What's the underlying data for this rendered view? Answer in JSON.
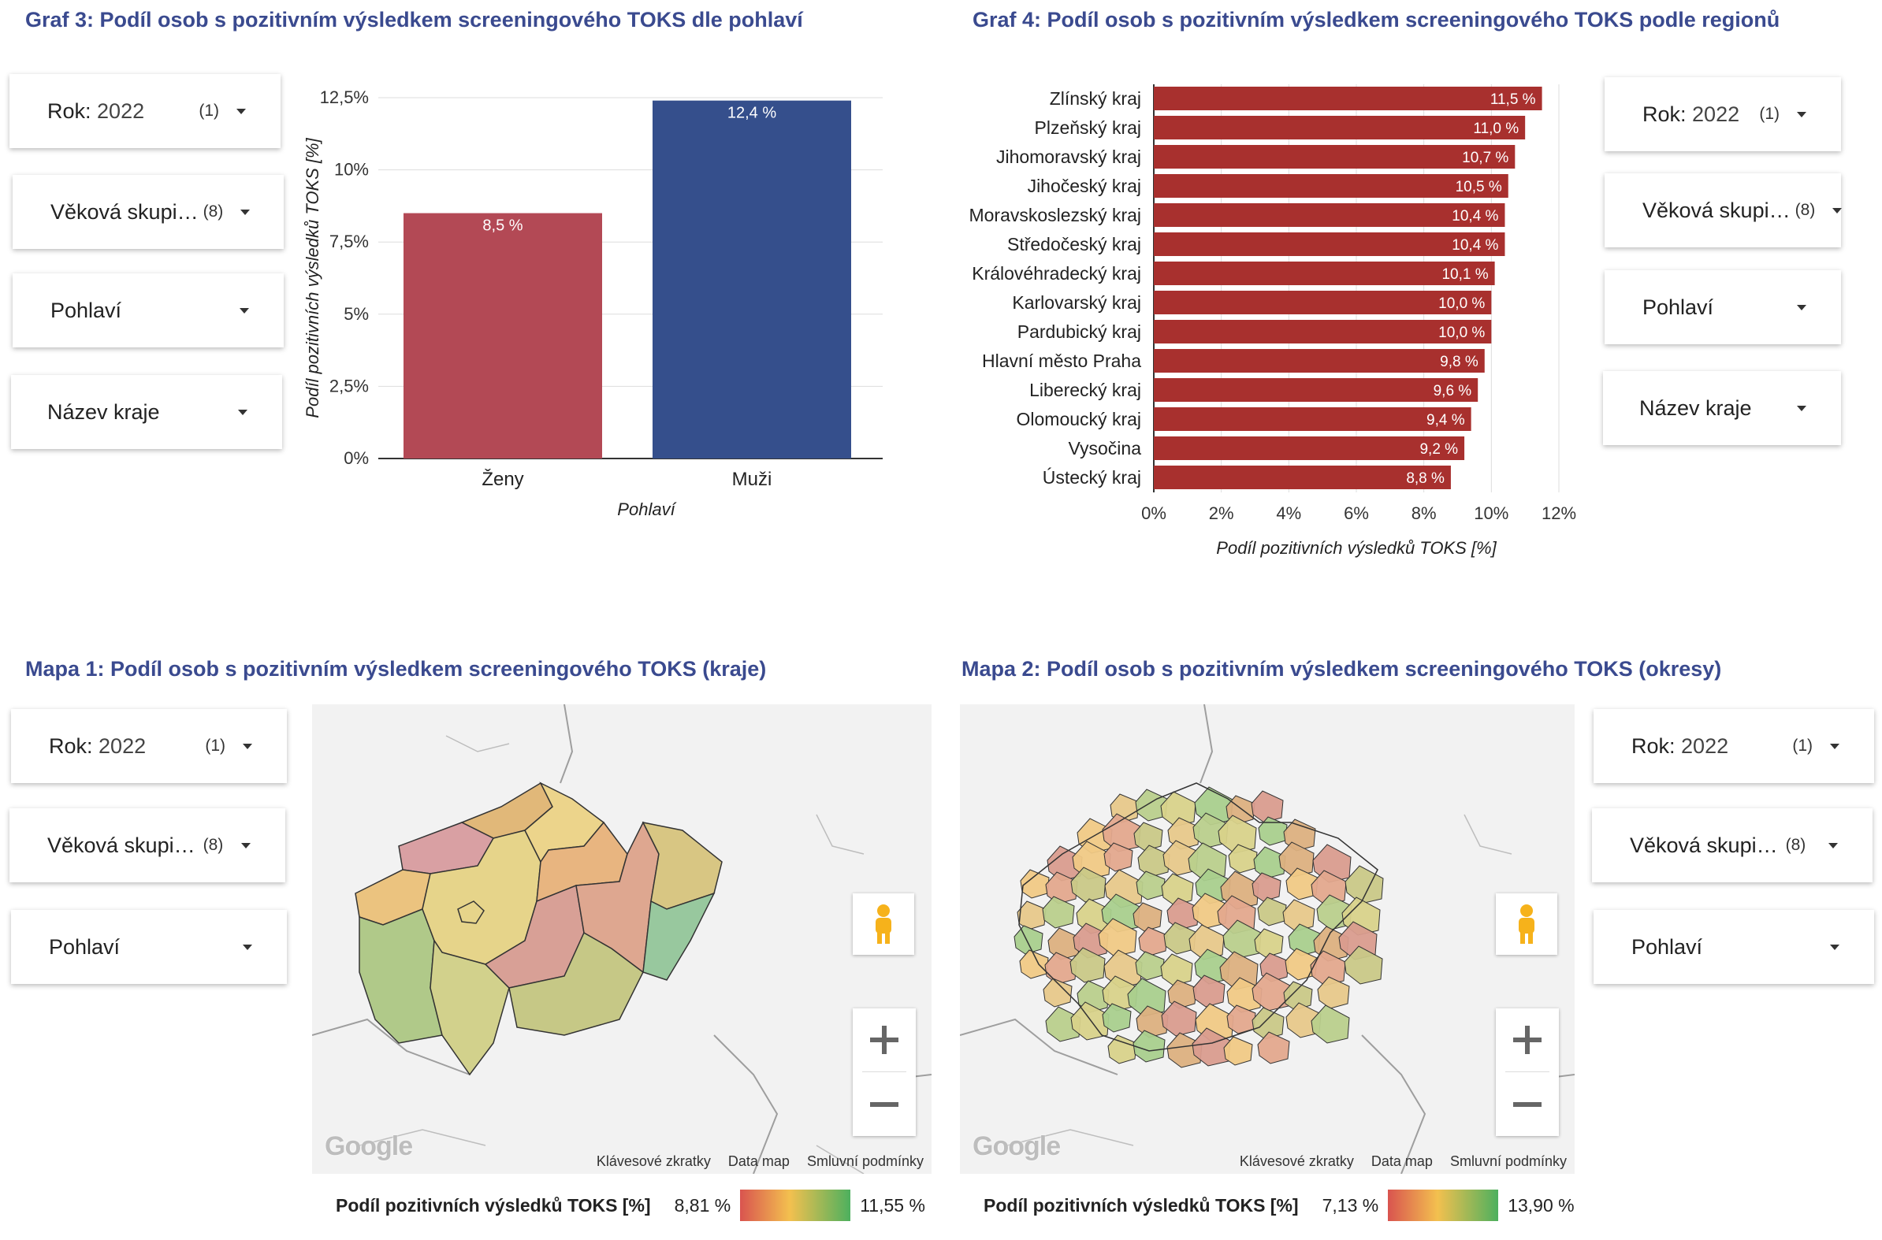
{
  "chart1": {
    "title": "Graf 3: Podíl osob s pozitivním výsledkem screeningového TOKS dle pohlaví",
    "filters": [
      {
        "key": "Rok",
        "value": "2022",
        "count": "(1)"
      },
      {
        "key": "Věková skupi…",
        "value": "",
        "count": "(8)"
      },
      {
        "key": "Pohlaví",
        "value": "",
        "count": ""
      },
      {
        "key": "Název kraje",
        "value": "",
        "count": ""
      }
    ]
  },
  "chart2": {
    "title": "Graf 4: Podíl osob s pozitivním výsledkem screeningového TOKS podle regionů",
    "filters": [
      {
        "key": "Rok",
        "value": "2022",
        "count": "(1)"
      },
      {
        "key": "Věková skupi…",
        "value": "",
        "count": "(8)"
      },
      {
        "key": "Pohlaví",
        "value": "",
        "count": ""
      },
      {
        "key": "Název kraje",
        "value": "",
        "count": ""
      }
    ]
  },
  "map1": {
    "title": "Mapa 1: Podíl osob s pozitivním výsledkem screeningového TOKS (kraje)",
    "filters": [
      {
        "key": "Rok",
        "value": "2022",
        "count": "(1)"
      },
      {
        "key": "Věková skupi…",
        "value": "",
        "count": "(8)"
      },
      {
        "key": "Pohlaví",
        "value": "",
        "count": ""
      }
    ],
    "google": "Google",
    "footer": [
      "Klávesové zkratky",
      "Data map",
      "Smluvní podmínky"
    ],
    "legend": {
      "title": "Podíl pozitivních výsledků TOKS [%]",
      "min": "8,81 %",
      "max": "11,55 %"
    }
  },
  "map2": {
    "title": "Mapa 2: Podíl osob s pozitivním výsledkem screeningového TOKS (okresy)",
    "filters": [
      {
        "key": "Rok",
        "value": "2022",
        "count": "(1)"
      },
      {
        "key": "Věková skupi…",
        "value": "",
        "count": "(8)"
      },
      {
        "key": "Pohlaví",
        "value": "",
        "count": ""
      }
    ],
    "google": "Google",
    "footer": [
      "Klávesové zkratky",
      "Data map",
      "Smluvní podmínky"
    ],
    "legend": {
      "title": "Podíl pozitivních výsledků TOKS [%]",
      "min": "7,13 %",
      "max": "13,90 %"
    }
  },
  "chart_data": [
    {
      "type": "bar",
      "orientation": "vertical",
      "categories": [
        "Ženy",
        "Muži"
      ],
      "values": [
        8.5,
        12.4
      ],
      "labels": [
        "8,5 %",
        "12,4 %"
      ],
      "colors": [
        "#b34955",
        "#354f8c"
      ],
      "xlabel": "Pohlaví",
      "ylabel": "Podíl pozitivních výsledků TOKS [%]",
      "ylim": [
        0,
        12.5
      ],
      "yticks": [
        "0%",
        "2,5%",
        "5%",
        "7,5%",
        "10%",
        "12,5%"
      ],
      "grid": true
    },
    {
      "type": "bar",
      "orientation": "horizontal",
      "categories": [
        "Zlínský kraj",
        "Plzeňský kraj",
        "Jihomoravský kraj",
        "Jihočeský kraj",
        "Moravskoslezský kraj",
        "Středočeský kraj",
        "Královéhradecký kraj",
        "Karlovarský kraj",
        "Pardubický kraj",
        "Hlavní město Praha",
        "Liberecký kraj",
        "Olomoucký kraj",
        "Vysočina",
        "Ústecký kraj"
      ],
      "values": [
        11.5,
        11.0,
        10.7,
        10.5,
        10.4,
        10.4,
        10.1,
        10.0,
        10.0,
        9.8,
        9.6,
        9.4,
        9.2,
        8.8
      ],
      "labels": [
        "11,5 %",
        "11,0 %",
        "10,7 %",
        "10,5 %",
        "10,4 %",
        "10,4 %",
        "10,1 %",
        "10,0 %",
        "10,0 %",
        "9,8 %",
        "9,6 %",
        "9,4 %",
        "9,2 %",
        "8,8 %"
      ],
      "color": "#a8302e",
      "xlabel": "Podíl pozitivních výsledků TOKS [%]",
      "xlim": [
        0,
        12
      ],
      "xticks": [
        "0%",
        "2%",
        "4%",
        "6%",
        "8%",
        "10%",
        "12%"
      ],
      "grid": true
    }
  ]
}
